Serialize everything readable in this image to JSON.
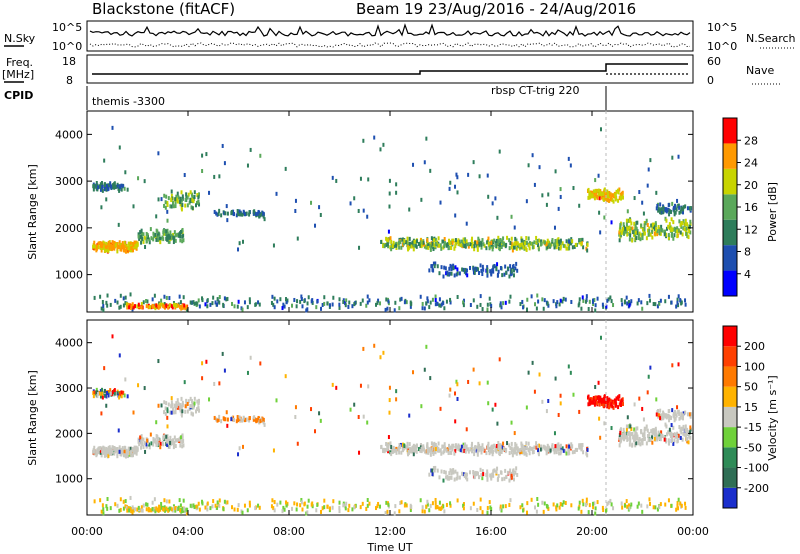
{
  "chart_data": {
    "header": {
      "radar": "Blackstone (fitACF)",
      "beam_info": "Beam 19  23/Aug/2016 - 24/Aug/2016"
    },
    "noise_panel": {
      "left_label": "N.Sky",
      "right_label": "N.Search",
      "yticks_left": [
        "10^5",
        "10^0"
      ],
      "yticks_right": [
        "10^5",
        "10^0"
      ]
    },
    "freq_panel": {
      "left_label_top": "Freq.",
      "left_label_unit": "[MHz]",
      "right_label": "Nave",
      "yticks_left": [
        "18",
        "8"
      ],
      "yticks_right": [
        "60",
        "0"
      ]
    },
    "cpid": {
      "label": "CPID",
      "segments": [
        {
          "name": "themis -3300",
          "start_hour": 0,
          "end_hour": 20.5
        },
        {
          "name": "rbsp CT-trig 220",
          "start_hour": 20.5,
          "end_hour": 24
        }
      ]
    },
    "time_axis": {
      "label": "Time UT",
      "ticks": [
        "00:00",
        "04:00",
        "08:00",
        "12:00",
        "16:00",
        "20:00",
        "00:00"
      ],
      "range_hours": [
        0,
        24
      ]
    },
    "range_axis": {
      "label": "Slant Range [km]",
      "ticks": [
        1000,
        2000,
        3000,
        4000
      ],
      "range_km": [
        200,
        4500
      ]
    },
    "panels": [
      {
        "type": "heatmap",
        "name": "power",
        "colorbar_label": "Power [dB]",
        "colorbar_ticks": [
          "28",
          "24",
          "20",
          "16",
          "12",
          "8",
          "4"
        ],
        "colors": [
          "#0000ff",
          "#1e4fb0",
          "#2e7d5b",
          "#5aa85a",
          "#c8d400",
          "#ff9900",
          "#ff0000"
        ]
      },
      {
        "type": "heatmap",
        "name": "velocity",
        "colorbar_label": "Velocity [m s⁻¹]",
        "colorbar_ticks": [
          "200",
          "100",
          "50",
          "15",
          "-15",
          "-50",
          "-100",
          "-200"
        ],
        "colors": [
          "#1a2ecc",
          "#2f6e55",
          "#2e8b57",
          "#6fd13a",
          "#c8c8c0",
          "#ffb300",
          "#ff7a00",
          "#ff4000",
          "#ff0000"
        ]
      }
    ]
  }
}
